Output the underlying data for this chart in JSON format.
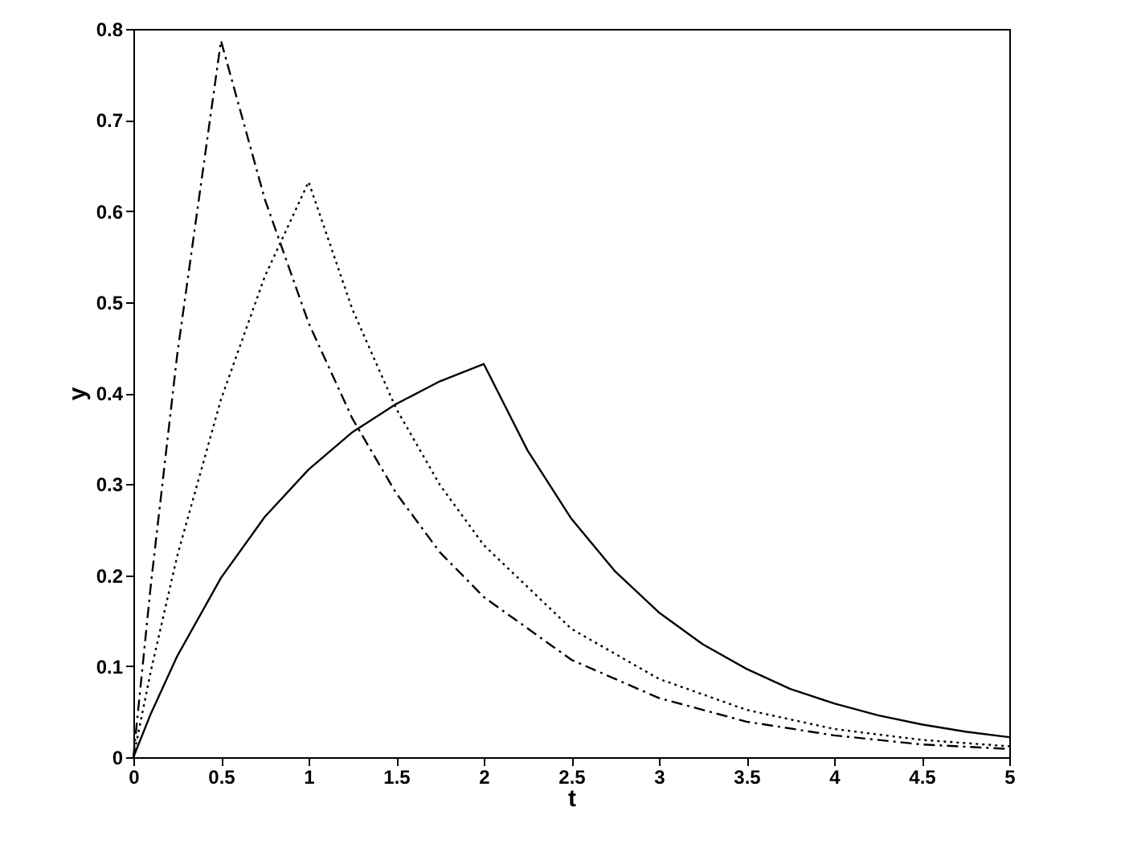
{
  "chart_data": {
    "type": "line",
    "xlabel": "t",
    "ylabel": "y",
    "xlim": [
      0,
      5
    ],
    "ylim": [
      0,
      0.8
    ],
    "xticks": [
      0,
      0.5,
      1,
      1.5,
      2,
      2.5,
      3,
      3.5,
      4,
      4.5,
      5
    ],
    "yticks": [
      0,
      0.1,
      0.2,
      0.3,
      0.4,
      0.5,
      0.6,
      0.7,
      0.8
    ],
    "series": [
      {
        "color": "#000000",
        "line_style": "solid",
        "x": [
          0,
          0.1,
          0.25,
          0.5,
          0.75,
          1,
          1.25,
          1.5,
          1.75,
          2,
          2.25,
          2.5,
          2.75,
          3,
          3.25,
          3.5,
          3.75,
          4,
          4.25,
          4.5,
          4.75,
          5
        ],
        "values": [
          0,
          0.048,
          0.111,
          0.197,
          0.264,
          0.316,
          0.357,
          0.388,
          0.413,
          0.432,
          0.337,
          0.262,
          0.204,
          0.159,
          0.124,
          0.097,
          0.075,
          0.059,
          0.046,
          0.036,
          0.028,
          0.022
        ]
      },
      {
        "color": "#000000",
        "line_style": "dotted",
        "x": [
          0,
          0.1,
          0.25,
          0.5,
          0.75,
          1,
          1.25,
          1.5,
          1.75,
          2,
          2.5,
          3,
          3.5,
          4,
          4.5,
          5
        ],
        "values": [
          0,
          0.095,
          0.221,
          0.393,
          0.528,
          0.632,
          0.492,
          0.383,
          0.299,
          0.233,
          0.141,
          0.086,
          0.052,
          0.031,
          0.019,
          0.012
        ]
      },
      {
        "color": "#000000",
        "line_style": "dashed",
        "x": [
          0,
          0.1,
          0.25,
          0.5,
          0.75,
          1,
          1.25,
          1.5,
          1.75,
          2,
          2.5,
          3,
          3.5,
          4,
          4.5,
          5
        ],
        "values": [
          0,
          0.19,
          0.442,
          0.787,
          0.613,
          0.477,
          0.372,
          0.29,
          0.225,
          0.176,
          0.107,
          0.065,
          0.039,
          0.024,
          0.014,
          0.009
        ]
      }
    ]
  }
}
